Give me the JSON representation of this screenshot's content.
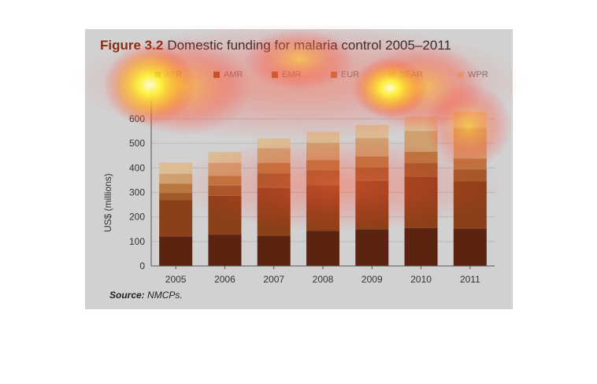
{
  "figure": {
    "number": "Figure 3.2",
    "title": "Domestic funding for malaria control 2005–2011",
    "source_label": "Source:",
    "source_text": "NMCPs."
  },
  "chart_data": {
    "type": "bar",
    "stacked": true,
    "title": "Figure 3.2 Domestic funding for malaria control 2005–2011",
    "ylabel": "US$ (millions)",
    "xlabel": "",
    "ylim": [
      0,
      700
    ],
    "yticks": [
      0,
      100,
      200,
      300,
      400,
      500,
      600
    ],
    "grid": true,
    "legend_position": "top",
    "categories": [
      "2005",
      "2006",
      "2007",
      "2008",
      "2009",
      "2010",
      "2011"
    ],
    "series": [
      {
        "name": "AFR",
        "color": "#5a2410",
        "values": [
          120,
          128,
          122,
          143,
          150,
          155,
          153
        ]
      },
      {
        "name": "AMR",
        "color": "#8a4018",
        "values": [
          148,
          158,
          196,
          187,
          197,
          210,
          192
        ]
      },
      {
        "name": "EMR",
        "color": "#a05a2a",
        "values": [
          30,
          42,
          60,
          60,
          55,
          55,
          48
        ]
      },
      {
        "name": "EUR",
        "color": "#b97840",
        "values": [
          38,
          40,
          42,
          42,
          45,
          46,
          45
        ]
      },
      {
        "name": "SEAR",
        "color": "#cfa070",
        "values": [
          40,
          52,
          60,
          70,
          75,
          85,
          125
        ]
      },
      {
        "name": "WPR",
        "color": "#dcbd95",
        "values": [
          45,
          45,
          40,
          45,
          53,
          59,
          65
        ]
      }
    ]
  }
}
